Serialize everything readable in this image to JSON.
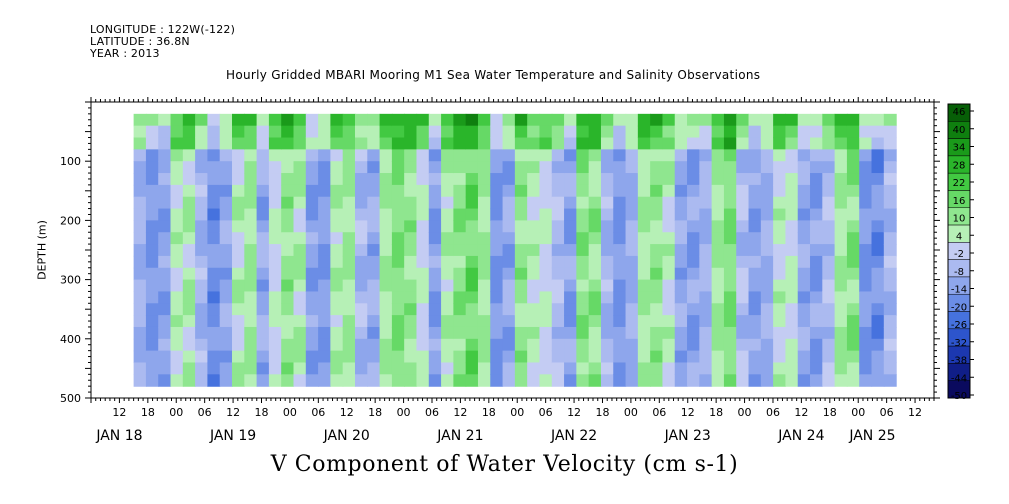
{
  "header": {
    "longitude": "LONGITUDE : 122W(-122)",
    "latitude": "LATITUDE : 36.8N",
    "year": "YEAR : 2013"
  },
  "chart_data": {
    "type": "heatmap",
    "title": "Hourly Gridded MBARI Mooring M1 Sea Water Temperature and Salinity Observations",
    "xlabel": "V Component of Water Velocity (cm s-1)",
    "ylabel": "DEPTH (m)",
    "x_range_hours_from_jan18_00": [
      -18,
      160
    ],
    "data_x_range_hours_from_jan18_00": [
      -9,
      152
    ],
    "ylim": [
      500,
      0
    ],
    "y_ticks": [
      100,
      200,
      300,
      400,
      500
    ],
    "hour_tick_labels": [
      "12",
      "18",
      "00",
      "06",
      "12",
      "18",
      "00",
      "06",
      "12",
      "18",
      "00",
      "06",
      "12",
      "18",
      "00",
      "06",
      "12",
      "18",
      "00",
      "06",
      "12",
      "18",
      "00",
      "06",
      "12",
      "18",
      "00",
      "06",
      "12",
      "18",
      "00",
      "06"
    ],
    "date_labels": [
      {
        "label": "JAN 18",
        "hour": -12
      },
      {
        "label": "JAN 19",
        "hour": 12
      },
      {
        "label": "JAN 20",
        "hour": 36
      },
      {
        "label": "JAN 21",
        "hour": 60
      },
      {
        "label": "JAN 22",
        "hour": 84
      },
      {
        "label": "JAN 23",
        "hour": 108
      },
      {
        "label": "JAN 24",
        "hour": 132
      },
      {
        "label": "JAN 25",
        "hour": 147
      }
    ],
    "colorbar": {
      "levels": [
        -50,
        -44,
        -38,
        -32,
        -26,
        -20,
        -14,
        -8,
        -2,
        4,
        10,
        16,
        22,
        28,
        34,
        40,
        46
      ],
      "labels": [
        "46",
        "40",
        "34",
        "28",
        "22",
        "16",
        "10",
        "4",
        "-2",
        "-8",
        "-14",
        "-20",
        "-26",
        "-32",
        "-38",
        "-44",
        "-50"
      ]
    },
    "column_mean_v_cm_s": [
      -8,
      -14,
      -12,
      6,
      8,
      -6,
      -16,
      -10,
      6,
      10,
      -10,
      4,
      12,
      8,
      -12,
      -14,
      8,
      10,
      -6,
      -10,
      10,
      16,
      12,
      4,
      -12,
      8,
      14,
      18,
      10,
      -14,
      -10,
      12,
      6,
      4,
      -4,
      -12,
      14,
      12,
      -6,
      -14,
      -8,
      10,
      12,
      6,
      -10,
      -12,
      -8,
      10,
      16,
      -4,
      -12,
      -8,
      6,
      4,
      -10,
      -12,
      -4,
      10,
      14,
      -14,
      -16,
      -6
    ]
  }
}
